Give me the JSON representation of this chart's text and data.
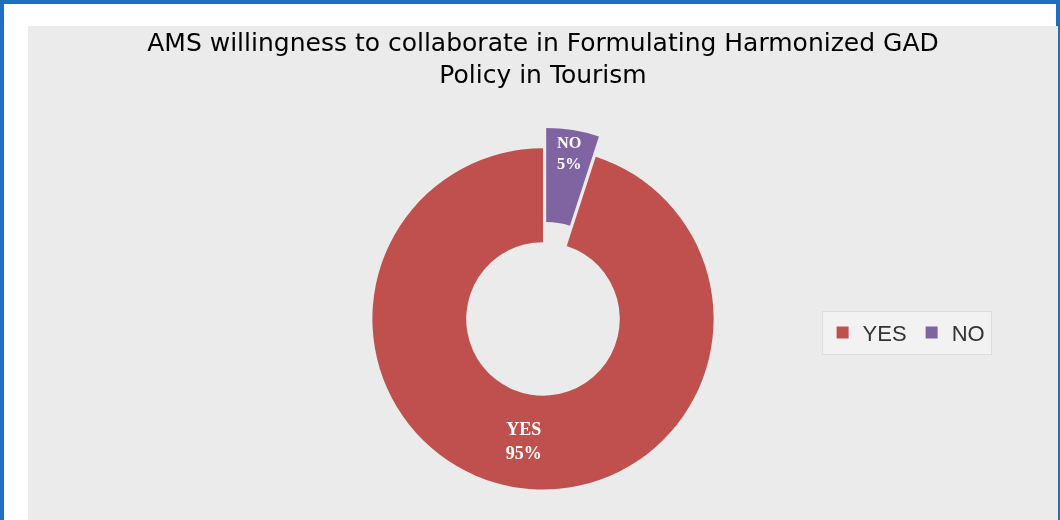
{
  "chart_data": {
    "type": "donut",
    "title": "AMS willingness to collaborate in Formulating Harmonized GAD Policy in Tourism",
    "categories": [
      "YES",
      "NO"
    ],
    "values": [
      95,
      5
    ],
    "value_labels": [
      "95%",
      "5%"
    ],
    "colors": [
      "#c0504d",
      "#8064a2"
    ],
    "legend": "right"
  }
}
